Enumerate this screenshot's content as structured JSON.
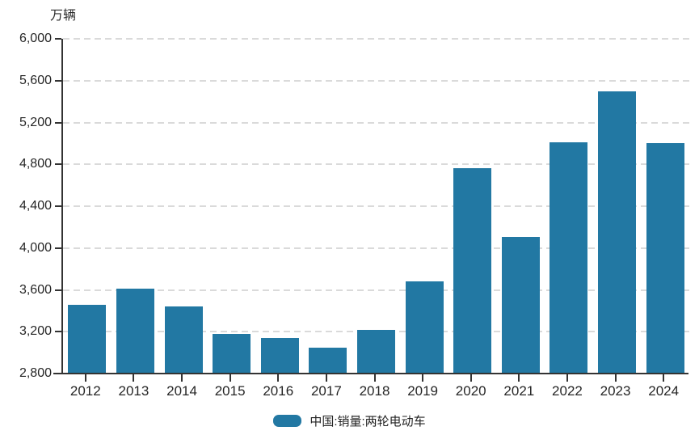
{
  "unit_label": "万辆",
  "legend": {
    "label": "中国:销量:两轮电动车"
  },
  "colors": {
    "bar": "#2278a3",
    "axis": "#333333",
    "gridline": "#dadada",
    "text": "#262626"
  },
  "chart_data": {
    "type": "bar",
    "title": "",
    "ylabel": "万辆",
    "xlabel": "",
    "categories": [
      "2012",
      "2013",
      "2014",
      "2015",
      "2016",
      "2017",
      "2018",
      "2019",
      "2020",
      "2021",
      "2022",
      "2023",
      "2024"
    ],
    "values": [
      3460,
      3610,
      3440,
      3180,
      3140,
      3050,
      3220,
      3680,
      4760,
      4110,
      5010,
      5500,
      5000
    ],
    "series_name": "中国:销量:两轮电动车",
    "ylim": [
      2800,
      6000
    ],
    "y_tick_step": 400,
    "y_tick_labels": [
      "2,800",
      "3,200",
      "3,600",
      "4,000",
      "4,400",
      "4,800",
      "5,200",
      "5,600",
      "6,000"
    ],
    "grid": "horizontal-dashed",
    "legend_position": "bottom-center",
    "bar_color": "#2278a3"
  }
}
